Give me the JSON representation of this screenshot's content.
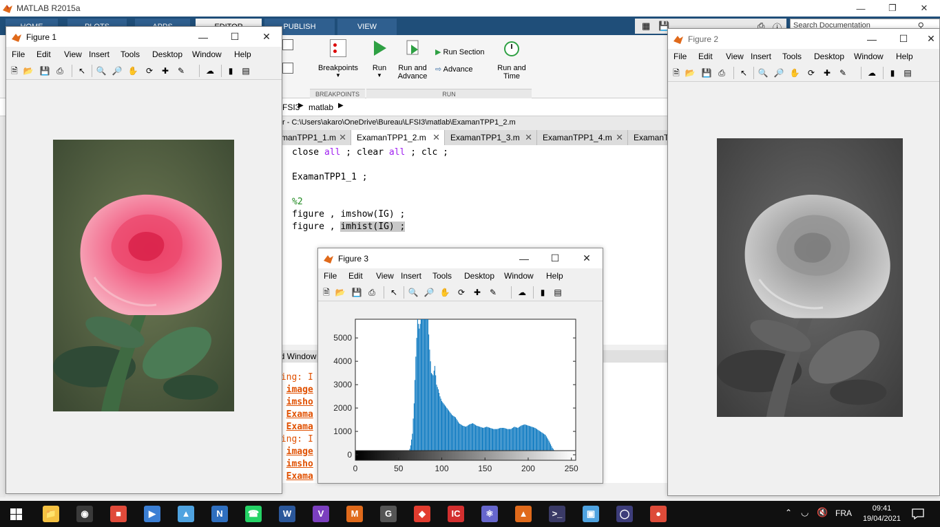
{
  "matlab": {
    "title": "MATLAB R2015a",
    "tabs": [
      "HOME",
      "PLOTS",
      "APPS",
      "EDITOR",
      "PUBLISH",
      "VIEW"
    ],
    "search_placeholder": "Search Documentation",
    "ribbon": {
      "breakpoints": "Breakpoints",
      "run": "Run",
      "run_and_advance_1": "Run and",
      "run_and_advance_2": "Advance",
      "run_section": "Run Section",
      "advance": "Advance",
      "run_and_time_1": "Run and",
      "run_and_time_2": "Time",
      "group_breakpoints": "BREAKPOINTS",
      "group_run": "RUN"
    },
    "breadcrumb": [
      "FSI3",
      "matlab"
    ],
    "editor_path": "r - C:\\Users\\akaro\\OneDrive\\Bureau\\LFSI3\\matlab\\ExamanTPP1_2.m",
    "editor_tabs": [
      "manTPP1_1.m",
      "ExamanTPP1_2.m",
      "ExamanTPP1_3.m",
      "ExamanTPP1_4.m",
      "ExamanT"
    ],
    "code": {
      "l1_a": "close ",
      "l1_b": "all",
      "l1_c": " ; clear ",
      "l1_d": "all",
      "l1_e": " ; clc ;",
      "l2": "ExamanTPP1_1 ;",
      "l3": "%2",
      "l4": "figure , imshow(IG) ;",
      "l5_a": "figure , ",
      "l5_b": "imhist(IG) ;"
    },
    "cmd_header": "nd Window",
    "cmd_lines": [
      {
        "prefix": "ning: I",
        "link": ""
      },
      {
        "prefix": "n ",
        "link": "image"
      },
      {
        "prefix": "n ",
        "link": "imsho"
      },
      {
        "prefix": "n ",
        "link": "Exama"
      },
      {
        "prefix": "n ",
        "link": "Exama"
      },
      {
        "prefix": "ning: I",
        "link": ""
      },
      {
        "prefix": "n ",
        "link": "image"
      },
      {
        "prefix": "n ",
        "link": "imsho"
      },
      {
        "prefix": "n ",
        "link": "Exama"
      }
    ]
  },
  "figure_menu": [
    "File",
    "Edit",
    "View",
    "Insert",
    "Tools",
    "Desktop",
    "Window",
    "Help"
  ],
  "figure1": {
    "title": "Figure 1"
  },
  "figure2": {
    "title": "Figure 2"
  },
  "figure3": {
    "title": "Figure 3"
  },
  "chart_data": {
    "type": "bar",
    "title": "",
    "xlabel": "",
    "ylabel": "",
    "xlim": [
      0,
      255
    ],
    "ylim": [
      0,
      5800
    ],
    "xticks": [
      0,
      50,
      100,
      150,
      200,
      250
    ],
    "yticks": [
      0,
      1000,
      2000,
      3000,
      4000,
      5000
    ],
    "bar_color": "#0072bd",
    "x": [
      60,
      62,
      64,
      66,
      68,
      70,
      72,
      74,
      76,
      78,
      80,
      82,
      84,
      86,
      88,
      90,
      92,
      94,
      96,
      98,
      100,
      104,
      108,
      112,
      116,
      120,
      124,
      128,
      132,
      136,
      140,
      144,
      148,
      152,
      156,
      160,
      164,
      168,
      172,
      176,
      180,
      184,
      188,
      192,
      196,
      200,
      204,
      208,
      212,
      216,
      220,
      224,
      228,
      232,
      236,
      240,
      244
    ],
    "values": [
      0,
      100,
      400,
      900,
      2200,
      4200,
      5800,
      5400,
      5800,
      5800,
      5800,
      5800,
      5800,
      4500,
      3500,
      3400,
      3800,
      3000,
      2800,
      2500,
      2300,
      2100,
      1900,
      1700,
      1600,
      1350,
      1250,
      1200,
      1300,
      1350,
      1250,
      1200,
      1150,
      1200,
      1150,
      1100,
      1100,
      1150,
      1150,
      1100,
      1100,
      1200,
      1150,
      1250,
      1300,
      1250,
      1200,
      1150,
      1050,
      950,
      850,
      600,
      300,
      100,
      30,
      10,
      0
    ]
  },
  "taskbar": {
    "time": "09:41",
    "date": "19/04/2021",
    "lang": "FRA",
    "apps": [
      "explorer",
      "obs",
      "paint",
      "media",
      "3d",
      "onenote",
      "whatsapp",
      "word",
      "visual-studio",
      "matlab-online",
      "g-app",
      "git",
      "ic",
      "atom",
      "matlab",
      "cmd",
      "cube",
      "eclipse",
      "chrome"
    ]
  }
}
